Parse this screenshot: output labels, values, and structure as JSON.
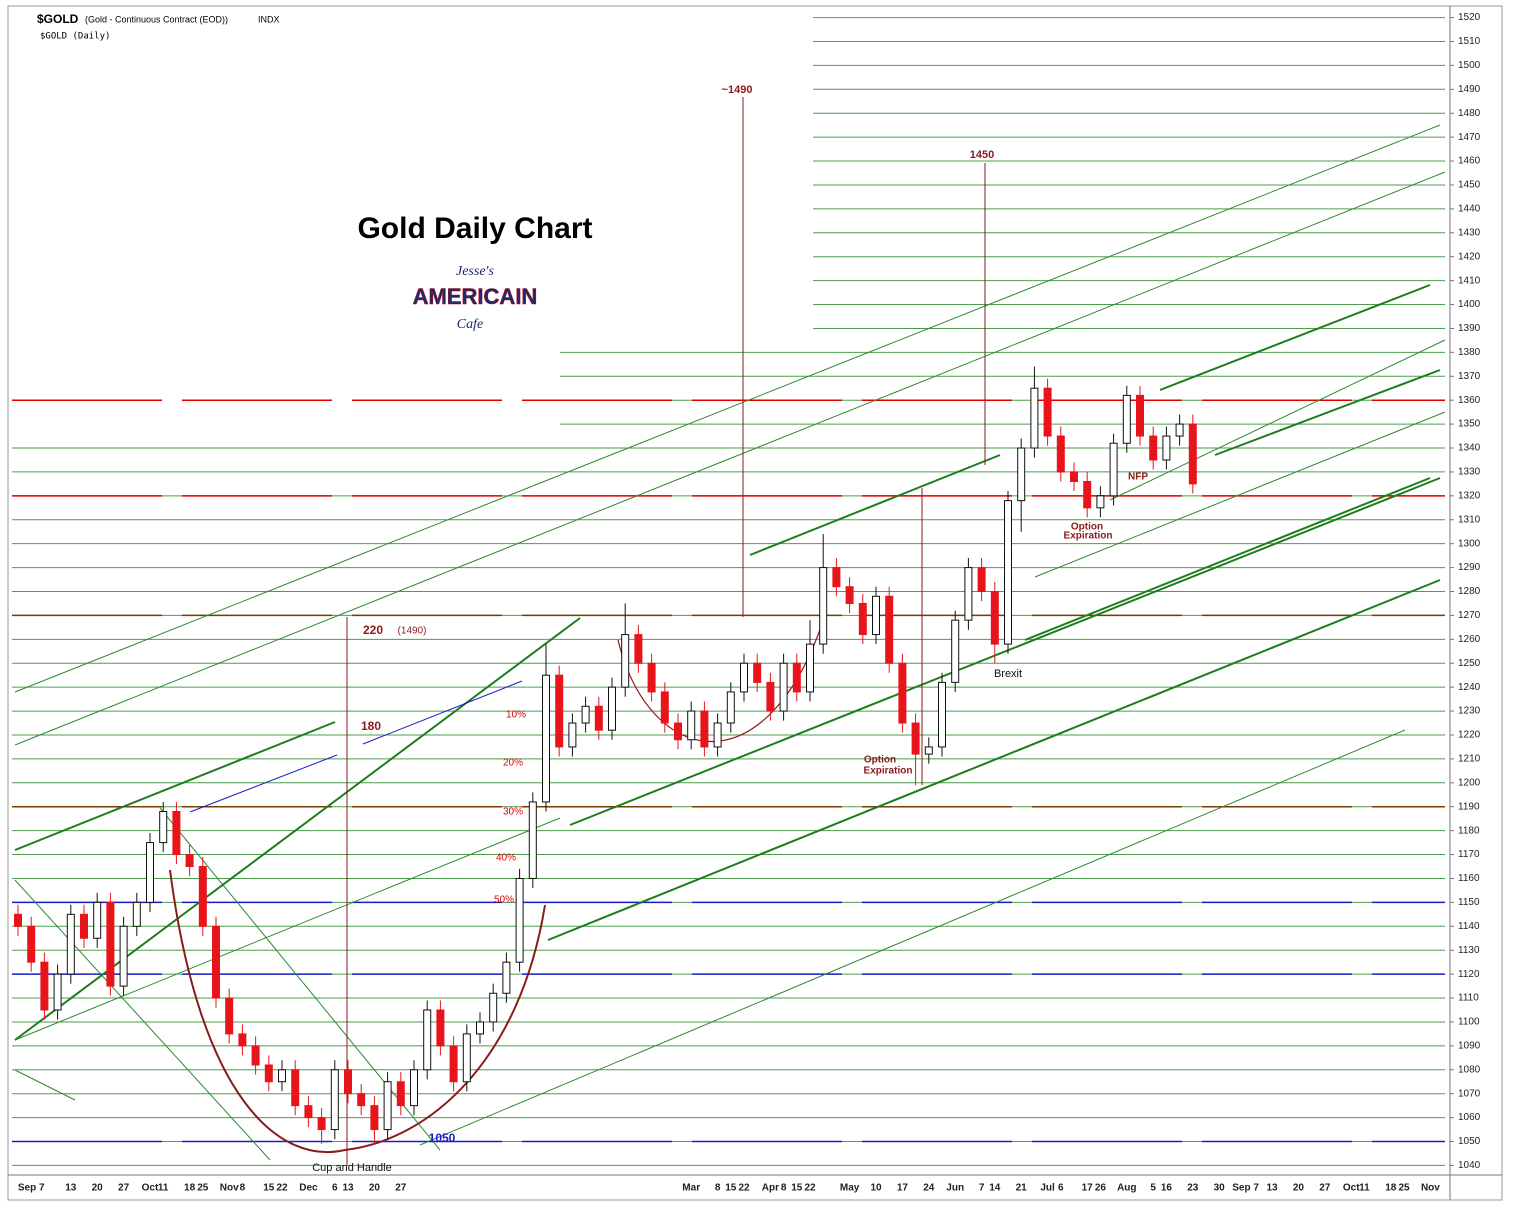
{
  "chart_data": {
    "type": "candlestick",
    "title": "Gold Daily Chart",
    "symbol": "$GOLD",
    "description": "(Gold - Continuous Contract (EOD))",
    "exchange": "INDX",
    "subtitle": "$GOLD (Daily)",
    "logo": [
      "Jesse's",
      "AMERICAIN",
      "Cafe"
    ],
    "annotations": [
      "~1490",
      "1450",
      "220",
      "(1490)",
      "180",
      "10%",
      "20%",
      "30%",
      "40%",
      "50%",
      "1050",
      "Cup and Handle",
      "Option",
      "Expiration",
      "Option",
      "Expiration",
      "Brexit",
      "NFP"
    ],
    "ylim": [
      1036,
      1524
    ],
    "yticks": [
      1040,
      1050,
      1060,
      1070,
      1080,
      1090,
      1100,
      1110,
      1120,
      1130,
      1140,
      1150,
      1160,
      1170,
      1180,
      1190,
      1200,
      1210,
      1220,
      1230,
      1240,
      1250,
      1260,
      1270,
      1280,
      1290,
      1300,
      1310,
      1320,
      1330,
      1340,
      1350,
      1360,
      1370,
      1380,
      1390,
      1400,
      1410,
      1420,
      1430,
      1440,
      1450,
      1460,
      1470,
      1480,
      1490,
      1500,
      1510,
      1520
    ],
    "grid": true,
    "up_color": "#ffffff",
    "down_color": "#e8141b",
    "grid_color": "#2e8b2e",
    "levels": [
      {
        "value": 1360,
        "color": "#e00000"
      },
      {
        "value": 1320,
        "color": "#e00000"
      },
      {
        "value": 1270,
        "color": "#7a3b00"
      },
      {
        "value": 1190,
        "color": "#7a3b00"
      },
      {
        "value": 1150,
        "color": "#1c1cc8"
      },
      {
        "value": 1120,
        "color": "#1c1cc8"
      },
      {
        "value": 1050,
        "color": "#1c1cc8"
      }
    ],
    "categories": [
      null,
      "Sep 7",
      null,
      null,
      "13",
      null,
      "20",
      null,
      "27",
      null,
      "Oct",
      "11",
      null,
      "18",
      "25",
      null,
      "Nov",
      "8",
      null,
      "15",
      "22",
      null,
      "Dec",
      null,
      "6",
      "13",
      null,
      "20",
      null,
      "27",
      null,
      null,
      null,
      null,
      null,
      null,
      null,
      null,
      null,
      null,
      null,
      null,
      null,
      null,
      null,
      null,
      null,
      null,
      null,
      null,
      null,
      "Mar",
      null,
      "8",
      "15",
      "22",
      null,
      "Apr",
      "8",
      "15",
      "22",
      null,
      null,
      "May",
      null,
      "10",
      null,
      "17",
      null,
      "24",
      null,
      "Jun",
      null,
      "7",
      "14",
      null,
      "21",
      null,
      "Jul",
      "6",
      null,
      "17",
      "26",
      null,
      "Aug",
      null,
      "5",
      "16",
      null,
      "23",
      null,
      "30",
      null,
      "Sep 7",
      null,
      "13",
      null,
      "20",
      null,
      "27",
      null,
      "Oct",
      "11",
      null,
      "18",
      "25",
      null,
      "Nov"
    ],
    "open": [
      1145,
      1140,
      1125,
      1105,
      1120,
      1145,
      1135,
      1150,
      1115,
      1140,
      1150,
      1175,
      1188,
      1170,
      1165,
      1140,
      1110,
      1095,
      1090,
      1082,
      1075,
      1080,
      1065,
      1060,
      1055,
      1080,
      1070,
      1065,
      1055,
      1075,
      1065,
      1080,
      1105,
      1090,
      1075,
      1095,
      1100,
      1112,
      1125,
      1160,
      1192,
      1245,
      1215,
      1225,
      1232,
      1222,
      1240,
      1262,
      1250,
      1238,
      1225,
      1218,
      1230,
      1215,
      1225,
      1238,
      1250,
      1242,
      1230,
      1250,
      1238,
      1258,
      1290,
      1282,
      1275,
      1262,
      1278,
      1250,
      1225,
      1212,
      1215,
      1242,
      1268,
      1290,
      1280,
      1258,
      1318,
      1340,
      1365,
      1345,
      1330,
      1326,
      1315,
      1320,
      1342,
      1362,
      1345,
      1335,
      1345,
      1350,
      null,
      null,
      null,
      null,
      null,
      null,
      null,
      null,
      null,
      null,
      null,
      null,
      null,
      null,
      null,
      null,
      null,
      null
    ],
    "high": [
      1149,
      1144,
      1129,
      1124,
      1149,
      1149,
      1154,
      1154,
      1144,
      1154,
      1179,
      1192,
      1192,
      1174,
      1169,
      1144,
      1114,
      1099,
      1094,
      1086,
      1084,
      1084,
      1069,
      1064,
      1084,
      1084,
      1074,
      1069,
      1079,
      1079,
      1084,
      1109,
      1109,
      1094,
      1099,
      1104,
      1116,
      1129,
      1164,
      1196,
      1258,
      1249,
      1229,
      1236,
      1236,
      1244,
      1275,
      1266,
      1254,
      1242,
      1229,
      1234,
      1234,
      1229,
      1242,
      1254,
      1254,
      1246,
      1254,
      1254,
      1268,
      1304,
      1294,
      1286,
      1279,
      1282,
      1282,
      1254,
      1229,
      1219,
      1246,
      1272,
      1294,
      1294,
      1284,
      1322,
      1344,
      1374,
      1369,
      1349,
      1334,
      1330,
      1324,
      1346,
      1366,
      1366,
      1349,
      1349,
      1354,
      1354,
      null,
      null,
      null,
      null,
      null,
      null,
      null,
      null,
      null,
      null,
      null,
      null,
      null,
      null,
      null,
      null,
      null,
      null
    ],
    "low": [
      1136,
      1121,
      1101,
      1101,
      1116,
      1131,
      1131,
      1111,
      1111,
      1136,
      1146,
      1171,
      1166,
      1161,
      1136,
      1106,
      1091,
      1086,
      1078,
      1071,
      1071,
      1061,
      1056,
      1049,
      1051,
      1066,
      1061,
      1049,
      1051,
      1061,
      1061,
      1076,
      1086,
      1071,
      1071,
      1091,
      1096,
      1108,
      1121,
      1156,
      1188,
      1211,
      1211,
      1221,
      1218,
      1218,
      1236,
      1246,
      1234,
      1221,
      1214,
      1214,
      1211,
      1211,
      1221,
      1234,
      1238,
      1226,
      1226,
      1234,
      1234,
      1254,
      1278,
      1271,
      1258,
      1258,
      1246,
      1221,
      1199,
      1208,
      1211,
      1238,
      1264,
      1276,
      1250,
      1254,
      1305,
      1336,
      1341,
      1326,
      1322,
      1311,
      1311,
      1316,
      1338,
      1341,
      1331,
      1331,
      1341,
      1321,
      null,
      null,
      null,
      null,
      null,
      null,
      null,
      null,
      null,
      null,
      null,
      null,
      null,
      null,
      null,
      null,
      null,
      null
    ],
    "close": [
      1140,
      1125,
      1105,
      1120,
      1145,
      1135,
      1150,
      1115,
      1140,
      1150,
      1175,
      1188,
      1170,
      1165,
      1140,
      1110,
      1095,
      1090,
      1082,
      1075,
      1080,
      1065,
      1060,
      1055,
      1080,
      1070,
      1065,
      1055,
      1075,
      1065,
      1080,
      1105,
      1090,
      1075,
      1095,
      1100,
      1112,
      1125,
      1160,
      1192,
      1245,
      1215,
      1225,
      1232,
      1222,
      1240,
      1262,
      1250,
      1238,
      1225,
      1218,
      1230,
      1215,
      1225,
      1238,
      1250,
      1242,
      1230,
      1250,
      1238,
      1258,
      1290,
      1282,
      1275,
      1262,
      1278,
      1250,
      1225,
      1212,
      1215,
      1242,
      1268,
      1290,
      1280,
      1258,
      1318,
      1340,
      1365,
      1345,
      1330,
      1326,
      1315,
      1320,
      1342,
      1362,
      1345,
      1335,
      1345,
      1350,
      1325,
      null,
      null,
      null,
      null,
      null,
      null,
      null,
      null,
      null,
      null,
      null,
      null,
      null,
      null,
      null,
      null,
      null,
      null
    ]
  }
}
